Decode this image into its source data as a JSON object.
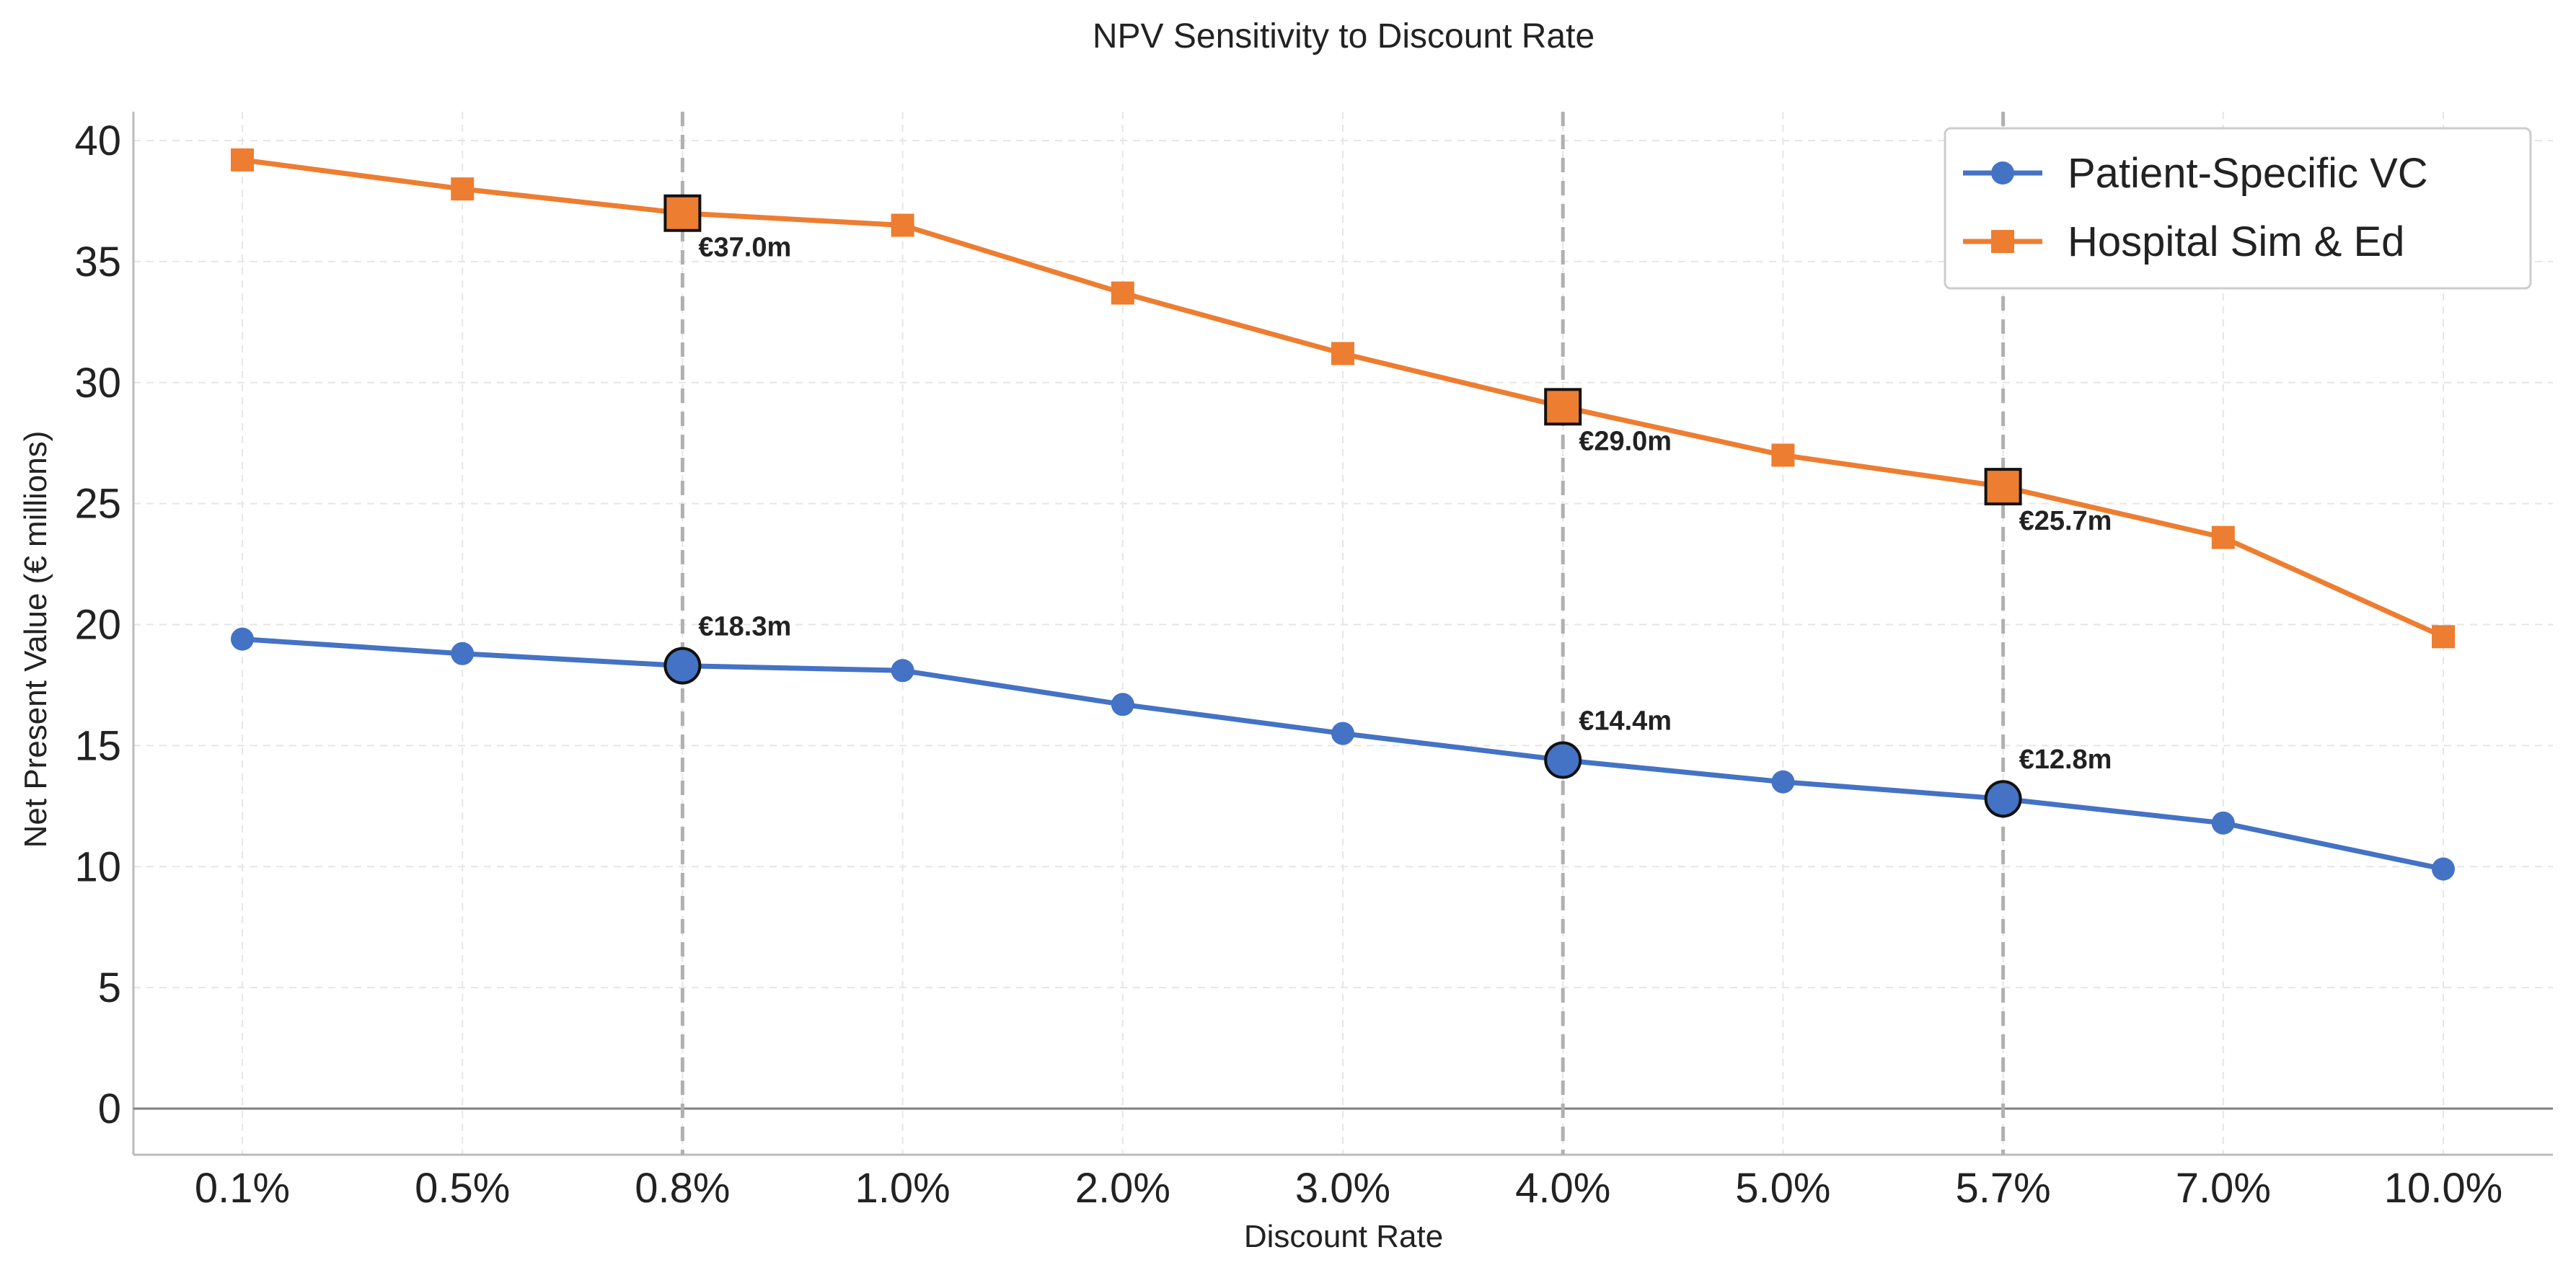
{
  "chart_data": {
    "type": "line",
    "title": "NPV Sensitivity to Discount Rate",
    "xlabel": "Discount Rate",
    "ylabel": "Net Present Value (€ millions)",
    "categories": [
      "0.1%",
      "0.5%",
      "0.8%",
      "1.0%",
      "2.0%",
      "3.0%",
      "4.0%",
      "5.0%",
      "5.7%",
      "7.0%",
      "10.0%"
    ],
    "ylim": [
      -2,
      41
    ],
    "yticks": [
      "0",
      "5",
      "10",
      "15",
      "20",
      "25",
      "30",
      "35",
      "40"
    ],
    "grid": true,
    "legend_position": "top-right",
    "series": [
      {
        "name": "Patient-Specific VC",
        "color": "#4472C4",
        "marker": "circle",
        "values": [
          19.4,
          18.8,
          18.3,
          18.1,
          16.7,
          15.5,
          14.4,
          13.5,
          12.8,
          11.8,
          9.9
        ]
      },
      {
        "name": "Hospital Sim & Ed",
        "color": "#ED7D31",
        "marker": "square",
        "values": [
          39.2,
          38.0,
          37.0,
          36.5,
          33.7,
          31.2,
          29.0,
          27.0,
          25.7,
          23.6,
          19.5
        ]
      }
    ],
    "highlight_categories": [
      "0.8%",
      "4.0%",
      "5.7%"
    ],
    "annotations": [
      {
        "series": 0,
        "category": "0.8%",
        "text": "€18.3m"
      },
      {
        "series": 0,
        "category": "4.0%",
        "text": "€14.4m"
      },
      {
        "series": 0,
        "category": "5.7%",
        "text": "€12.8m"
      },
      {
        "series": 1,
        "category": "0.8%",
        "text": "€37.0m"
      },
      {
        "series": 1,
        "category": "4.0%",
        "text": "€29.0m"
      },
      {
        "series": 1,
        "category": "5.7%",
        "text": "€25.7m"
      }
    ]
  }
}
